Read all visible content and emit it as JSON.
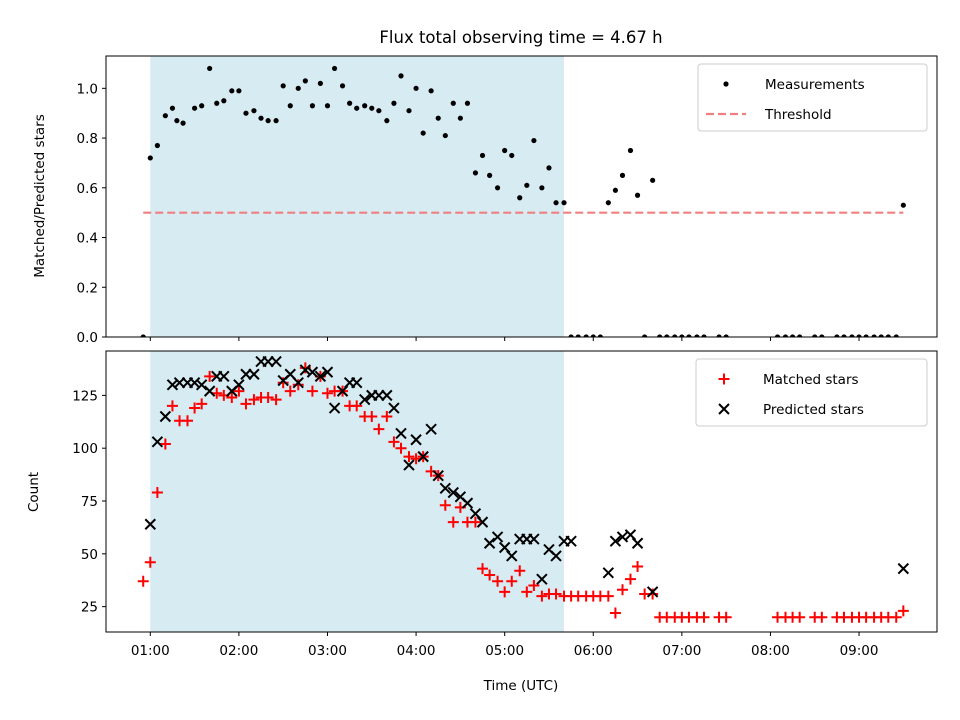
{
  "chart_data": [
    {
      "type": "scatter",
      "title": "Flux total observing time = 4.67 h",
      "ylabel": "Matched/Predicted stars",
      "xlim": [
        0.5,
        9.88
      ],
      "ylim": [
        0,
        1.13
      ],
      "yticks": [
        0.0,
        0.2,
        0.4,
        0.6,
        0.8,
        1.0
      ],
      "ytick_labels": [
        "0.0",
        "0.2",
        "0.4",
        "0.6",
        "0.8",
        "1.0"
      ],
      "shaded_span": [
        1.0,
        5.67
      ],
      "legend_position": "top-right",
      "series": [
        {
          "name": "Measurements",
          "marker": "dot",
          "color": "#000000",
          "points": [
            [
              0.92,
              0.0
            ],
            [
              1.0,
              0.72
            ],
            [
              1.08,
              0.77
            ],
            [
              1.17,
              0.89
            ],
            [
              1.25,
              0.92
            ],
            [
              1.3,
              0.87
            ],
            [
              1.37,
              0.86
            ],
            [
              1.5,
              0.92
            ],
            [
              1.58,
              0.93
            ],
            [
              1.67,
              1.08
            ],
            [
              1.75,
              0.94
            ],
            [
              1.83,
              0.95
            ],
            [
              1.92,
              0.99
            ],
            [
              2.0,
              0.99
            ],
            [
              2.08,
              0.9
            ],
            [
              2.17,
              0.91
            ],
            [
              2.25,
              0.88
            ],
            [
              2.33,
              0.87
            ],
            [
              2.42,
              0.87
            ],
            [
              2.5,
              1.01
            ],
            [
              2.58,
              0.93
            ],
            [
              2.67,
              1.0
            ],
            [
              2.75,
              1.03
            ],
            [
              2.83,
              0.93
            ],
            [
              2.92,
              1.02
            ],
            [
              3.0,
              0.93
            ],
            [
              3.08,
              1.08
            ],
            [
              3.17,
              1.01
            ],
            [
              3.25,
              0.94
            ],
            [
              3.33,
              0.92
            ],
            [
              3.42,
              0.93
            ],
            [
              3.5,
              0.92
            ],
            [
              3.58,
              0.91
            ],
            [
              3.67,
              0.87
            ],
            [
              3.75,
              0.94
            ],
            [
              3.83,
              1.05
            ],
            [
              3.92,
              0.91
            ],
            [
              4.0,
              1.0
            ],
            [
              4.08,
              0.82
            ],
            [
              4.17,
              0.99
            ],
            [
              4.25,
              0.88
            ],
            [
              4.33,
              0.81
            ],
            [
              4.42,
              0.94
            ],
            [
              4.5,
              0.88
            ],
            [
              4.58,
              0.94
            ],
            [
              4.67,
              0.66
            ],
            [
              4.75,
              0.73
            ],
            [
              4.83,
              0.65
            ],
            [
              4.92,
              0.6
            ],
            [
              5.0,
              0.75
            ],
            [
              5.08,
              0.73
            ],
            [
              5.17,
              0.56
            ],
            [
              5.25,
              0.61
            ],
            [
              5.33,
              0.79
            ],
            [
              5.42,
              0.6
            ],
            [
              5.5,
              0.68
            ],
            [
              5.58,
              0.54
            ],
            [
              5.67,
              0.54
            ],
            [
              5.75,
              0.0
            ],
            [
              5.83,
              0.0
            ],
            [
              5.92,
              0.0
            ],
            [
              6.0,
              0.0
            ],
            [
              6.08,
              0.0
            ],
            [
              6.17,
              0.54
            ],
            [
              6.25,
              0.59
            ],
            [
              6.33,
              0.65
            ],
            [
              6.42,
              0.75
            ],
            [
              6.5,
              0.57
            ],
            [
              6.58,
              0.0
            ],
            [
              6.67,
              0.63
            ],
            [
              6.75,
              0.0
            ],
            [
              6.83,
              0.0
            ],
            [
              6.92,
              0.0
            ],
            [
              7.0,
              0.0
            ],
            [
              7.08,
              0.0
            ],
            [
              7.17,
              0.0
            ],
            [
              7.25,
              0.0
            ],
            [
              7.42,
              0.0
            ],
            [
              7.5,
              0.0
            ],
            [
              8.08,
              0.0
            ],
            [
              8.17,
              0.0
            ],
            [
              8.25,
              0.0
            ],
            [
              8.33,
              0.0
            ],
            [
              8.5,
              0.0
            ],
            [
              8.58,
              0.0
            ],
            [
              8.75,
              0.0
            ],
            [
              8.83,
              0.0
            ],
            [
              8.92,
              0.0
            ],
            [
              9.0,
              0.0
            ],
            [
              9.08,
              0.0
            ],
            [
              9.17,
              0.0
            ],
            [
              9.25,
              0.0
            ],
            [
              9.33,
              0.0
            ],
            [
              9.42,
              0.0
            ],
            [
              9.5,
              0.53
            ]
          ]
        },
        {
          "name": "Threshold",
          "marker": "dashed-line",
          "color": "#f08080",
          "points": [
            [
              0.92,
              0.5
            ],
            [
              9.5,
              0.5
            ]
          ]
        }
      ]
    },
    {
      "type": "scatter",
      "xlabel": "Time (UTC)",
      "ylabel": "Count",
      "xlim": [
        0.5,
        9.88
      ],
      "ylim": [
        13,
        146
      ],
      "xticks": [
        1,
        2,
        3,
        4,
        5,
        6,
        7,
        8,
        9
      ],
      "xtick_labels": [
        "01:00",
        "02:00",
        "03:00",
        "04:00",
        "05:00",
        "06:00",
        "07:00",
        "08:00",
        "09:00"
      ],
      "yticks": [
        25,
        50,
        75,
        100,
        125
      ],
      "ytick_labels": [
        "25",
        "50",
        "75",
        "100",
        "125"
      ],
      "shaded_span": [
        1.0,
        5.67
      ],
      "legend_position": "top-right",
      "series": [
        {
          "name": "Matched stars",
          "marker": "plus",
          "color": "#ff0000",
          "points": [
            [
              0.92,
              37
            ],
            [
              1.0,
              46
            ],
            [
              1.08,
              79
            ],
            [
              1.17,
              102
            ],
            [
              1.25,
              120
            ],
            [
              1.33,
              113
            ],
            [
              1.42,
              113
            ],
            [
              1.5,
              119
            ],
            [
              1.58,
              121
            ],
            [
              1.67,
              134
            ],
            [
              1.75,
              126
            ],
            [
              1.83,
              125
            ],
            [
              1.92,
              124
            ],
            [
              2.0,
              127
            ],
            [
              2.08,
              121
            ],
            [
              2.17,
              123
            ],
            [
              2.25,
              124
            ],
            [
              2.33,
              124
            ],
            [
              2.42,
              123
            ],
            [
              2.5,
              131
            ],
            [
              2.58,
              127
            ],
            [
              2.67,
              130
            ],
            [
              2.75,
              138
            ],
            [
              2.83,
              127
            ],
            [
              2.92,
              134
            ],
            [
              3.0,
              126
            ],
            [
              3.08,
              127
            ],
            [
              3.17,
              127
            ],
            [
              3.25,
              120
            ],
            [
              3.33,
              120
            ],
            [
              3.42,
              115
            ],
            [
              3.5,
              115
            ],
            [
              3.58,
              109
            ],
            [
              3.67,
              115
            ],
            [
              3.75,
              103
            ],
            [
              3.83,
              100
            ],
            [
              3.92,
              96
            ],
            [
              4.0,
              95
            ],
            [
              4.08,
              96
            ],
            [
              4.17,
              89
            ],
            [
              4.25,
              87
            ],
            [
              4.33,
              73
            ],
            [
              4.42,
              65
            ],
            [
              4.5,
              72
            ],
            [
              4.58,
              65
            ],
            [
              4.67,
              65
            ],
            [
              4.75,
              43
            ],
            [
              4.83,
              40
            ],
            [
              4.92,
              37
            ],
            [
              5.0,
              32
            ],
            [
              5.08,
              37
            ],
            [
              5.17,
              42
            ],
            [
              5.25,
              32
            ],
            [
              5.33,
              35
            ],
            [
              5.42,
              30
            ],
            [
              5.5,
              31
            ],
            [
              5.58,
              31
            ],
            [
              5.67,
              30
            ],
            [
              5.75,
              30
            ],
            [
              5.83,
              30
            ],
            [
              5.92,
              30
            ],
            [
              6.0,
              30
            ],
            [
              6.08,
              30
            ],
            [
              6.17,
              30
            ],
            [
              6.25,
              22
            ],
            [
              6.33,
              33
            ],
            [
              6.42,
              38
            ],
            [
              6.5,
              44
            ],
            [
              6.58,
              31
            ],
            [
              6.67,
              31
            ],
            [
              6.75,
              20
            ],
            [
              6.83,
              20
            ],
            [
              6.92,
              20
            ],
            [
              7.0,
              20
            ],
            [
              7.08,
              20
            ],
            [
              7.17,
              20
            ],
            [
              7.25,
              20
            ],
            [
              7.42,
              20
            ],
            [
              7.5,
              20
            ],
            [
              8.08,
              20
            ],
            [
              8.17,
              20
            ],
            [
              8.25,
              20
            ],
            [
              8.33,
              20
            ],
            [
              8.5,
              20
            ],
            [
              8.58,
              20
            ],
            [
              8.75,
              20
            ],
            [
              8.83,
              20
            ],
            [
              8.92,
              20
            ],
            [
              9.0,
              20
            ],
            [
              9.08,
              20
            ],
            [
              9.17,
              20
            ],
            [
              9.25,
              20
            ],
            [
              9.33,
              20
            ],
            [
              9.42,
              20
            ],
            [
              9.5,
              23
            ]
          ]
        },
        {
          "name": "Predicted stars",
          "marker": "x",
          "color": "#000000",
          "points": [
            [
              1.0,
              64
            ],
            [
              1.08,
              103
            ],
            [
              1.17,
              115
            ],
            [
              1.25,
              130
            ],
            [
              1.33,
              131
            ],
            [
              1.42,
              131
            ],
            [
              1.5,
              131
            ],
            [
              1.58,
              130
            ],
            [
              1.67,
              127
            ],
            [
              1.75,
              134
            ],
            [
              1.83,
              134
            ],
            [
              1.92,
              127
            ],
            [
              2.0,
              130
            ],
            [
              2.08,
              135
            ],
            [
              2.17,
              135
            ],
            [
              2.25,
              141
            ],
            [
              2.33,
              141
            ],
            [
              2.42,
              141
            ],
            [
              2.5,
              132
            ],
            [
              2.58,
              135
            ],
            [
              2.67,
              131
            ],
            [
              2.75,
              137
            ],
            [
              2.83,
              136
            ],
            [
              2.92,
              134
            ],
            [
              3.0,
              136
            ],
            [
              3.08,
              119
            ],
            [
              3.17,
              127
            ],
            [
              3.25,
              131
            ],
            [
              3.33,
              131
            ],
            [
              3.42,
              123
            ],
            [
              3.5,
              125
            ],
            [
              3.58,
              125
            ],
            [
              3.67,
              125
            ],
            [
              3.75,
              119
            ],
            [
              3.83,
              107
            ],
            [
              3.92,
              92
            ],
            [
              4.0,
              104
            ],
            [
              4.08,
              96
            ],
            [
              4.17,
              109
            ],
            [
              4.25,
              87
            ],
            [
              4.33,
              81
            ],
            [
              4.42,
              79
            ],
            [
              4.5,
              77
            ],
            [
              4.58,
              74
            ],
            [
              4.67,
              69
            ],
            [
              4.75,
              65
            ],
            [
              4.83,
              55
            ],
            [
              4.92,
              58
            ],
            [
              5.0,
              53
            ],
            [
              5.08,
              49
            ],
            [
              5.17,
              57
            ],
            [
              5.25,
              57
            ],
            [
              5.33,
              57
            ],
            [
              5.42,
              38
            ],
            [
              5.5,
              52
            ],
            [
              5.58,
              49
            ],
            [
              5.67,
              56
            ],
            [
              5.75,
              56
            ],
            [
              6.17,
              41
            ],
            [
              6.25,
              56
            ],
            [
              6.33,
              58
            ],
            [
              6.42,
              59
            ],
            [
              6.5,
              55
            ],
            [
              6.67,
              32
            ],
            [
              9.5,
              43
            ]
          ]
        }
      ]
    }
  ]
}
